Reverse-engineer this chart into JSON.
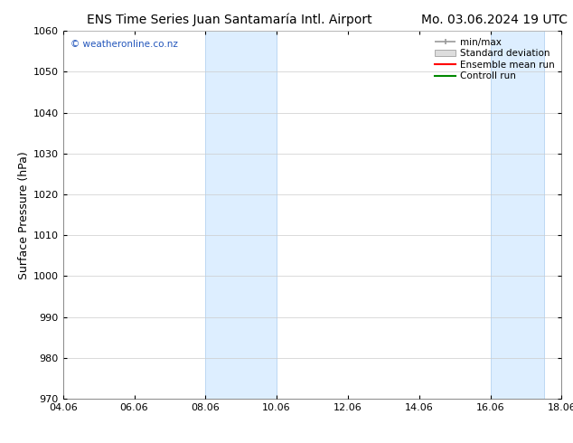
{
  "title_left": "ENS Time Series Juan Santamaría Intl. Airport",
  "title_right": "Mo. 03.06.2024 19 UTC",
  "ylabel": "Surface Pressure (hPa)",
  "ylim": [
    970,
    1060
  ],
  "yticks": [
    970,
    980,
    990,
    1000,
    1010,
    1020,
    1030,
    1040,
    1050,
    1060
  ],
  "xlim_start": 0.0,
  "xlim_end": 14.0,
  "xtick_labels": [
    "04.06",
    "06.06",
    "08.06",
    "10.06",
    "12.06",
    "14.06",
    "16.06",
    "18.06"
  ],
  "xtick_positions": [
    0,
    2,
    4,
    6,
    8,
    10,
    12,
    14
  ],
  "shaded_bands": [
    {
      "x_start": 4.0,
      "x_end": 6.0
    },
    {
      "x_start": 12.0,
      "x_end": 13.5
    }
  ],
  "band_color": "#ddeeff",
  "band_edge_color": "#aaccee",
  "watermark_text": "© weatheronline.co.nz",
  "watermark_color": "#2255bb",
  "legend_entries": [
    "min/max",
    "Standard deviation",
    "Ensemble mean run",
    "Controll run"
  ],
  "legend_line_colors": [
    "#999999",
    "#bbbbbb",
    "#ff0000",
    "#008800"
  ],
  "background_color": "#ffffff",
  "plot_bg_color": "#ffffff",
  "title_fontsize": 10,
  "tick_fontsize": 8,
  "ylabel_fontsize": 9
}
